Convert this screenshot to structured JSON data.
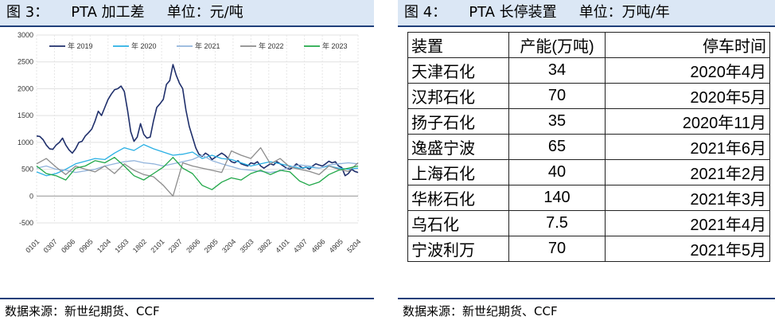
{
  "left_panel": {
    "title_fig": "图 3：",
    "title_main": "PTA 加工差",
    "title_unit": "单位：元/吨",
    "source": "数据来源：新世纪期货、CCF"
  },
  "right_panel": {
    "title_fig": "图 4：",
    "title_main": "PTA 长停装置",
    "title_unit": "单位：万吨/年",
    "source": "数据来源：新世纪期货、CCF",
    "table": {
      "headers": [
        "装置",
        "产能(万吨)",
        "停车时间"
      ],
      "rows": [
        [
          "天津石化",
          "34",
          "2020年4月"
        ],
        [
          "汉邦石化",
          "70",
          "2020年5月"
        ],
        [
          "扬子石化",
          "35",
          "2020年11月"
        ],
        [
          "逸盛宁波",
          "65",
          "2021年6月"
        ],
        [
          "上海石化",
          "40",
          "2021年2月"
        ],
        [
          "华彬石化",
          "140",
          "2021年3月"
        ],
        [
          "乌石化",
          "7.5",
          "2021年4月"
        ],
        [
          "宁波利万",
          "70",
          "2021年5月"
        ]
      ]
    }
  },
  "chart_data": {
    "type": "line",
    "title": "",
    "xlabel": "",
    "ylabel": "",
    "ylim": [
      -500,
      3000
    ],
    "yticks": [
      -500,
      0,
      500,
      1000,
      1500,
      2000,
      2500,
      3000
    ],
    "xticks": [
      "0101",
      "0307",
      "0606",
      "0905",
      "1204",
      "1503",
      "1802",
      "2101",
      "2307",
      "2606",
      "2905",
      "3204",
      "3503",
      "3802",
      "4101",
      "4307",
      "4606",
      "4905",
      "5204"
    ],
    "grid": true,
    "legend_position": "top",
    "colors": {
      "2019": "#1f2f6b",
      "2020": "#2ab0e4",
      "2021": "#92b4dc",
      "2022": "#8c8c8c",
      "2023": "#22a84a"
    },
    "series": [
      {
        "name": "年 2019",
        "points": [
          [
            0,
            1120
          ],
          [
            1,
            1110
          ],
          [
            2,
            1050
          ],
          [
            3,
            950
          ],
          [
            4,
            880
          ],
          [
            5,
            870
          ],
          [
            6,
            950
          ],
          [
            7,
            1000
          ],
          [
            8,
            1080
          ],
          [
            9,
            950
          ],
          [
            10,
            860
          ],
          [
            11,
            800
          ],
          [
            12,
            880
          ],
          [
            13,
            1000
          ],
          [
            14,
            1020
          ],
          [
            15,
            1120
          ],
          [
            16,
            1180
          ],
          [
            17,
            1250
          ],
          [
            18,
            1400
          ],
          [
            19,
            1580
          ],
          [
            20,
            1500
          ],
          [
            21,
            1650
          ],
          [
            22,
            1800
          ],
          [
            23,
            1900
          ],
          [
            24,
            1980
          ],
          [
            25,
            2000
          ],
          [
            26,
            2050
          ],
          [
            27,
            1950
          ],
          [
            28,
            1600
          ],
          [
            29,
            1200
          ],
          [
            30,
            1020
          ],
          [
            31,
            1100
          ],
          [
            32,
            1350
          ],
          [
            33,
            1150
          ],
          [
            34,
            1080
          ],
          [
            35,
            1100
          ],
          [
            36,
            1400
          ],
          [
            37,
            1650
          ],
          [
            38,
            1720
          ],
          [
            39,
            1800
          ],
          [
            40,
            2080
          ],
          [
            41,
            2150
          ],
          [
            42,
            2450
          ],
          [
            43,
            2250
          ],
          [
            44,
            2100
          ],
          [
            45,
            2000
          ],
          [
            46,
            1600
          ],
          [
            47,
            1300
          ],
          [
            48,
            1100
          ],
          [
            49,
            900
          ],
          [
            50,
            780
          ],
          [
            51,
            740
          ],
          [
            52,
            800
          ],
          [
            53,
            760
          ],
          [
            54,
            680
          ],
          [
            55,
            720
          ],
          [
            56,
            760
          ],
          [
            57,
            800
          ],
          [
            58,
            760
          ],
          [
            59,
            700
          ],
          [
            60,
            640
          ],
          [
            61,
            620
          ],
          [
            62,
            660
          ],
          [
            63,
            600
          ],
          [
            64,
            580
          ],
          [
            65,
            560
          ],
          [
            66,
            620
          ],
          [
            67,
            600
          ],
          [
            68,
            640
          ],
          [
            69,
            560
          ],
          [
            70,
            520
          ],
          [
            71,
            560
          ],
          [
            72,
            600
          ],
          [
            73,
            580
          ],
          [
            74,
            640
          ],
          [
            75,
            600
          ],
          [
            76,
            560
          ],
          [
            77,
            520
          ],
          [
            78,
            500
          ],
          [
            79,
            540
          ],
          [
            80,
            600
          ],
          [
            81,
            560
          ],
          [
            82,
            520
          ],
          [
            83,
            540
          ],
          [
            84,
            500
          ],
          [
            85,
            560
          ],
          [
            86,
            600
          ],
          [
            87,
            580
          ],
          [
            88,
            560
          ],
          [
            89,
            600
          ],
          [
            90,
            650
          ],
          [
            91,
            620
          ],
          [
            92,
            640
          ],
          [
            93,
            560
          ],
          [
            94,
            530
          ],
          [
            95,
            380
          ],
          [
            96,
            420
          ],
          [
            97,
            500
          ],
          [
            98,
            460
          ],
          [
            99,
            440
          ]
        ]
      },
      {
        "name": "年 2020",
        "points": [
          [
            0,
            450
          ],
          [
            3,
            380
          ],
          [
            6,
            420
          ],
          [
            9,
            500
          ],
          [
            12,
            600
          ],
          [
            15,
            650
          ],
          [
            18,
            700
          ],
          [
            21,
            680
          ],
          [
            24,
            800
          ],
          [
            27,
            900
          ],
          [
            30,
            850
          ],
          [
            33,
            960
          ],
          [
            36,
            880
          ],
          [
            39,
            820
          ],
          [
            42,
            760
          ],
          [
            45,
            780
          ],
          [
            48,
            820
          ],
          [
            51,
            700
          ],
          [
            54,
            760
          ],
          [
            57,
            700
          ],
          [
            60,
            680
          ],
          [
            63,
            620
          ],
          [
            66,
            560
          ],
          [
            69,
            600
          ],
          [
            72,
            640
          ],
          [
            75,
            600
          ],
          [
            78,
            560
          ],
          [
            81,
            520
          ],
          [
            84,
            540
          ],
          [
            87,
            520
          ],
          [
            90,
            560
          ],
          [
            93,
            520
          ],
          [
            96,
            500
          ],
          [
            99,
            520
          ]
        ]
      },
      {
        "name": "年 2021",
        "points": [
          [
            0,
            520
          ],
          [
            3,
            560
          ],
          [
            6,
            500
          ],
          [
            9,
            480
          ],
          [
            12,
            440
          ],
          [
            15,
            470
          ],
          [
            18,
            500
          ],
          [
            21,
            560
          ],
          [
            24,
            600
          ],
          [
            27,
            640
          ],
          [
            30,
            660
          ],
          [
            33,
            620
          ],
          [
            36,
            600
          ],
          [
            39,
            560
          ],
          [
            42,
            600
          ],
          [
            45,
            640
          ],
          [
            48,
            680
          ],
          [
            51,
            760
          ],
          [
            54,
            660
          ],
          [
            57,
            600
          ],
          [
            60,
            550
          ],
          [
            63,
            500
          ],
          [
            66,
            480
          ],
          [
            69,
            460
          ],
          [
            72,
            440
          ],
          [
            75,
            470
          ],
          [
            78,
            540
          ],
          [
            81,
            580
          ],
          [
            84,
            560
          ],
          [
            87,
            520
          ],
          [
            90,
            580
          ],
          [
            93,
            600
          ],
          [
            96,
            620
          ],
          [
            99,
            600
          ]
        ]
      },
      {
        "name": "年 2022",
        "points": [
          [
            0,
            600
          ],
          [
            3,
            700
          ],
          [
            6,
            540
          ],
          [
            9,
            400
          ],
          [
            12,
            560
          ],
          [
            15,
            500
          ],
          [
            18,
            450
          ],
          [
            21,
            560
          ],
          [
            24,
            420
          ],
          [
            27,
            600
          ],
          [
            30,
            480
          ],
          [
            33,
            400
          ],
          [
            36,
            360
          ],
          [
            39,
            200
          ],
          [
            42,
            0
          ],
          [
            45,
            620
          ],
          [
            48,
            560
          ],
          [
            51,
            520
          ],
          [
            54,
            480
          ],
          [
            57,
            440
          ],
          [
            60,
            840
          ],
          [
            63,
            760
          ],
          [
            66,
            700
          ],
          [
            69,
            900
          ],
          [
            72,
            600
          ],
          [
            75,
            700
          ],
          [
            78,
            540
          ],
          [
            81,
            500
          ],
          [
            84,
            460
          ],
          [
            87,
            400
          ],
          [
            90,
            560
          ],
          [
            93,
            500
          ],
          [
            96,
            460
          ],
          [
            99,
            620
          ]
        ]
      },
      {
        "name": "年 2023",
        "points": [
          [
            0,
            560
          ],
          [
            3,
            420
          ],
          [
            6,
            380
          ],
          [
            9,
            300
          ],
          [
            12,
            520
          ],
          [
            15,
            560
          ],
          [
            18,
            660
          ],
          [
            21,
            620
          ],
          [
            24,
            720
          ],
          [
            27,
            560
          ],
          [
            30,
            380
          ],
          [
            33,
            300
          ],
          [
            36,
            420
          ],
          [
            39,
            540
          ],
          [
            42,
            720
          ],
          [
            45,
            520
          ],
          [
            48,
            420
          ],
          [
            51,
            200
          ],
          [
            54,
            120
          ],
          [
            57,
            260
          ],
          [
            60,
            340
          ],
          [
            63,
            300
          ],
          [
            66,
            420
          ],
          [
            69,
            480
          ],
          [
            72,
            400
          ],
          [
            75,
            480
          ],
          [
            78,
            450
          ],
          [
            81,
            280
          ],
          [
            84,
            200
          ],
          [
            87,
            260
          ],
          [
            90,
            400
          ],
          [
            93,
            480
          ],
          [
            96,
            520
          ],
          [
            99,
            560
          ]
        ]
      }
    ]
  }
}
